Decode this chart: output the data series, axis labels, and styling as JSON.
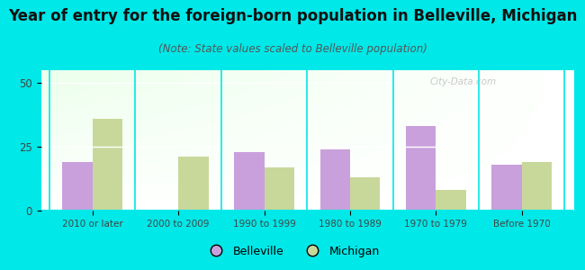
{
  "title": "Year of entry for the foreign-born population in Belleville, Michigan",
  "subtitle": "(Note: State values scaled to Belleville population)",
  "categories": [
    "2010 or later",
    "2000 to 2009",
    "1990 to 1999",
    "1980 to 1989",
    "1970 to 1979",
    "Before 1970"
  ],
  "belleville": [
    19,
    0,
    23,
    24,
    33,
    18
  ],
  "michigan": [
    36,
    21,
    17,
    13,
    8,
    19
  ],
  "belleville_color": "#c9a0dc",
  "michigan_color": "#c8d89a",
  "background_color": "#00e8e8",
  "ylim": [
    0,
    55
  ],
  "yticks": [
    0,
    25,
    50
  ],
  "bar_width": 0.35,
  "legend_belleville": "Belleville",
  "legend_michigan": "Michigan",
  "title_fontsize": 12,
  "subtitle_fontsize": 8.5
}
